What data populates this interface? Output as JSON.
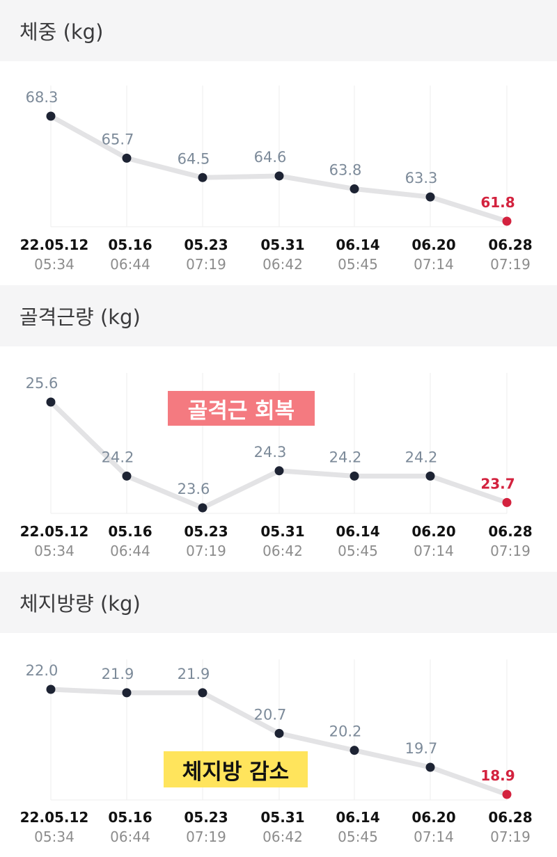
{
  "sections": [
    {
      "title": "체중 (kg)",
      "note": ""
    },
    {
      "title": "골격근량 (kg)",
      "note": "골격근 회복"
    },
    {
      "title": "체지방량 (kg)",
      "note": "체지방 감소"
    }
  ],
  "colors": {
    "line": "#e3e3e5",
    "point": "#1d2333",
    "last_point": "#d3223e",
    "value_label": "#7c8a99",
    "grid": "#eeeeee",
    "date": "#111111",
    "time": "#8c8c8c",
    "header_bg": "#f5f5f6"
  },
  "chart_data": [
    {
      "type": "line",
      "title": "체중 (kg)",
      "categories": [
        "22.05.12",
        "05.16",
        "05.23",
        "05.31",
        "06.14",
        "06.20",
        "06.28"
      ],
      "times": [
        "05:34",
        "06:44",
        "07:19",
        "06:42",
        "05:45",
        "07:14",
        "07:19"
      ],
      "values": [
        68.3,
        65.7,
        64.5,
        64.6,
        63.8,
        63.3,
        61.8
      ],
      "labels": [
        "68.3",
        "65.7",
        "64.5",
        "64.6",
        "63.8",
        "63.3",
        "61.8"
      ],
      "grid": true
    },
    {
      "type": "line",
      "title": "골격근량 (kg)",
      "categories": [
        "22.05.12",
        "05.16",
        "05.23",
        "05.31",
        "06.14",
        "06.20",
        "06.28"
      ],
      "times": [
        "05:34",
        "06:44",
        "07:19",
        "06:42",
        "05:45",
        "07:14",
        "07:19"
      ],
      "values": [
        25.6,
        24.2,
        23.6,
        24.3,
        24.2,
        24.2,
        23.7
      ],
      "labels": [
        "25.6",
        "24.2",
        "23.6",
        "24.3",
        "24.2",
        "24.2",
        "23.7"
      ],
      "annotation": "골격근 회복",
      "grid": true
    },
    {
      "type": "line",
      "title": "체지방량 (kg)",
      "categories": [
        "22.05.12",
        "05.16",
        "05.23",
        "05.31",
        "06.14",
        "06.20",
        "06.28"
      ],
      "times": [
        "05:34",
        "06:44",
        "07:19",
        "06:42",
        "05:45",
        "07:14",
        "07:19"
      ],
      "values": [
        22.0,
        21.9,
        21.9,
        20.7,
        20.2,
        19.7,
        18.9
      ],
      "labels": [
        "22.0",
        "21.9",
        "21.9",
        "20.7",
        "20.2",
        "19.7",
        "18.9"
      ],
      "annotation": "체지방 감소",
      "grid": true
    }
  ]
}
